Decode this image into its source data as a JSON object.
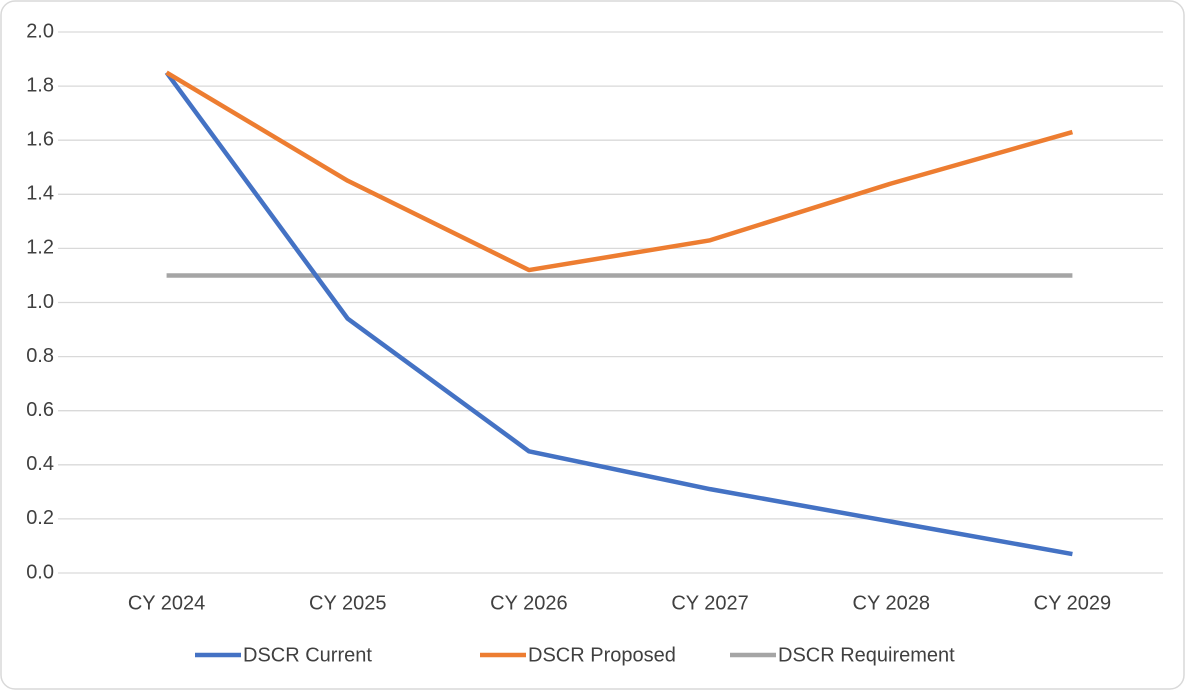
{
  "chart_data": {
    "type": "line",
    "categories": [
      "CY 2024",
      "CY 2025",
      "CY 2026",
      "CY 2027",
      "CY 2028",
      "CY 2029"
    ],
    "series": [
      {
        "name": "DSCR Current",
        "color": "#4472c4",
        "values": [
          1.85,
          0.94,
          0.45,
          0.31,
          0.19,
          0.07
        ]
      },
      {
        "name": "DSCR Proposed",
        "color": "#ed7d31",
        "values": [
          1.85,
          1.45,
          1.12,
          1.23,
          1.44,
          1.63
        ]
      },
      {
        "name": "DSCR Requirement",
        "color": "#a5a5a5",
        "values": [
          1.1,
          1.1,
          1.1,
          1.1,
          1.1,
          1.1
        ]
      }
    ],
    "ylim": [
      0,
      2
    ],
    "yticks": [
      {
        "value": 0,
        "label": "0.0"
      },
      0.2,
      0.4,
      0.6,
      0.8,
      {
        "value": 1,
        "label": "1.0"
      },
      1.2,
      1.4,
      1.6,
      1.8,
      {
        "value": 2,
        "label": "2.0"
      }
    ],
    "grid": true,
    "legend": "bottom"
  }
}
